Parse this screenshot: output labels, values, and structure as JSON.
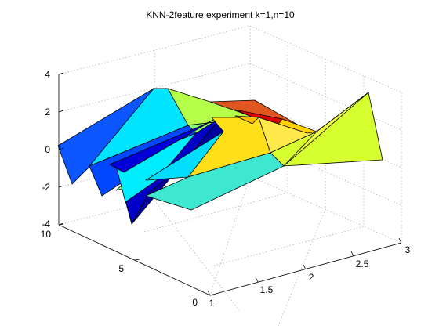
{
  "chart_data": {
    "type": "surface3d",
    "title": "KNN-2feature experiment k=1,n=10",
    "xlabel": "",
    "ylabel": "",
    "zlabel": "",
    "x_ticks": [
      "1",
      "1.5",
      "2",
      "2.5",
      "3"
    ],
    "y_ticks": [
      "0",
      "5",
      "10"
    ],
    "z_ticks": [
      "-4",
      "-2",
      "0",
      "2",
      "4"
    ],
    "xlim": [
      1,
      3
    ],
    "ylim": [
      0,
      10
    ],
    "zlim": [
      -4,
      4
    ],
    "colormap": "jet",
    "grid": true
  }
}
